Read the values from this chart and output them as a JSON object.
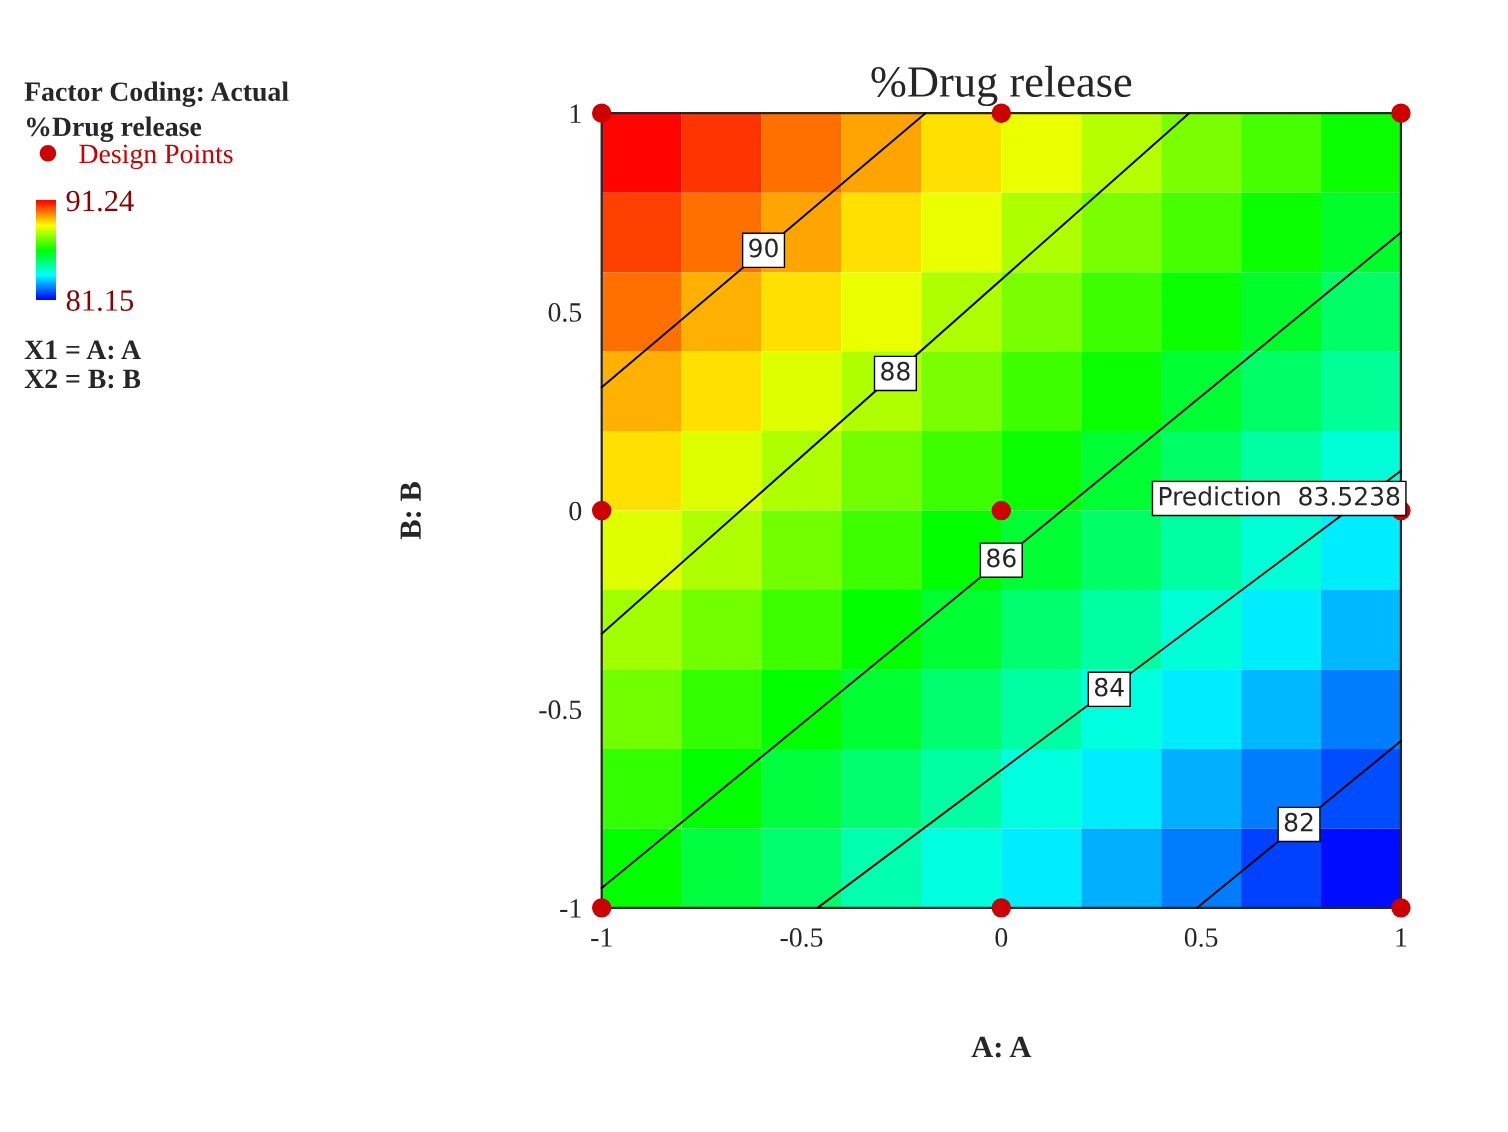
{
  "chart_data": {
    "type": "heatmap",
    "title": "%Drug release",
    "xlabel": "A: A",
    "ylabel": "B: B",
    "clabel": "%Drug release",
    "xlim": [
      -1,
      1
    ],
    "xticks": [
      -1,
      -0.5,
      0,
      0.5,
      1
    ],
    "ylim": [
      -1,
      1
    ],
    "yticks": [
      -1,
      -0.5,
      0,
      0.5,
      1
    ],
    "clim": [
      81.15,
      91.24
    ],
    "cticks": [
      81.15,
      91.24
    ],
    "legend": "top left",
    "grid": false,
    "cells": [
      [
        91.2,
        90.7,
        90.1,
        89.6,
        89.0,
        88.5,
        88.0,
        87.4,
        86.9,
        86.3
      ],
      [
        90.6,
        90.1,
        89.6,
        89.0,
        88.5,
        87.9,
        87.4,
        86.9,
        86.3,
        85.8
      ],
      [
        90.1,
        89.5,
        89.0,
        88.5,
        87.9,
        87.4,
        86.8,
        86.3,
        85.8,
        85.2
      ],
      [
        89.5,
        89.0,
        88.4,
        87.9,
        87.4,
        86.8,
        86.3,
        85.7,
        85.2,
        84.7
      ],
      [
        89.0,
        88.4,
        87.9,
        87.3,
        86.8,
        86.3,
        85.7,
        85.2,
        84.6,
        84.1
      ],
      [
        88.4,
        87.9,
        87.3,
        86.8,
        86.2,
        85.7,
        85.2,
        84.6,
        84.1,
        83.5
      ],
      [
        87.8,
        87.3,
        86.8,
        86.2,
        85.7,
        85.1,
        84.6,
        84.1,
        83.5,
        83.0
      ],
      [
        87.3,
        86.7,
        86.2,
        85.7,
        85.1,
        84.6,
        84.0,
        83.5,
        83.0,
        82.4
      ],
      [
        86.7,
        86.2,
        85.6,
        85.1,
        84.6,
        84.0,
        83.5,
        82.9,
        82.4,
        81.9
      ],
      [
        86.2,
        85.6,
        85.1,
        84.5,
        84.0,
        83.5,
        82.9,
        82.4,
        81.8,
        81.3
      ]
    ],
    "series": [
      {
        "name": "Design Points",
        "type": "scatter",
        "color": "#cc0000",
        "x": [
          -1,
          0,
          1,
          -1,
          0,
          1,
          -1,
          0,
          1
        ],
        "values": [
          1,
          1,
          1,
          0,
          0,
          0,
          -1,
          -1,
          -1
        ]
      },
      {
        "name": "90",
        "type": "line",
        "color": "#000000",
        "x": [
          -1,
          -0.19
        ],
        "values": [
          0.31,
          1
        ]
      },
      {
        "name": "88",
        "type": "line",
        "color": "#000000",
        "x": [
          -1,
          0.47
        ],
        "values": [
          -0.31,
          1
        ]
      },
      {
        "name": "86",
        "type": "line",
        "color": "#000000",
        "x": [
          -1,
          1
        ],
        "values": [
          -0.95,
          0.7
        ]
      },
      {
        "name": "84",
        "type": "line",
        "color": "#000000",
        "x": [
          -0.46,
          1
        ],
        "values": [
          -1,
          0.1
        ]
      },
      {
        "name": "82",
        "type": "line",
        "color": "#000000",
        "x": [
          0.49,
          1
        ],
        "values": [
          -1,
          -0.58
        ]
      }
    ],
    "annotations": [
      "Factor Coding: Actual",
      "X1 = A: A",
      "X2 = B: B",
      {
        "text": "Prediction  83.5238",
        "x": 1,
        "y": 0
      }
    ]
  }
}
